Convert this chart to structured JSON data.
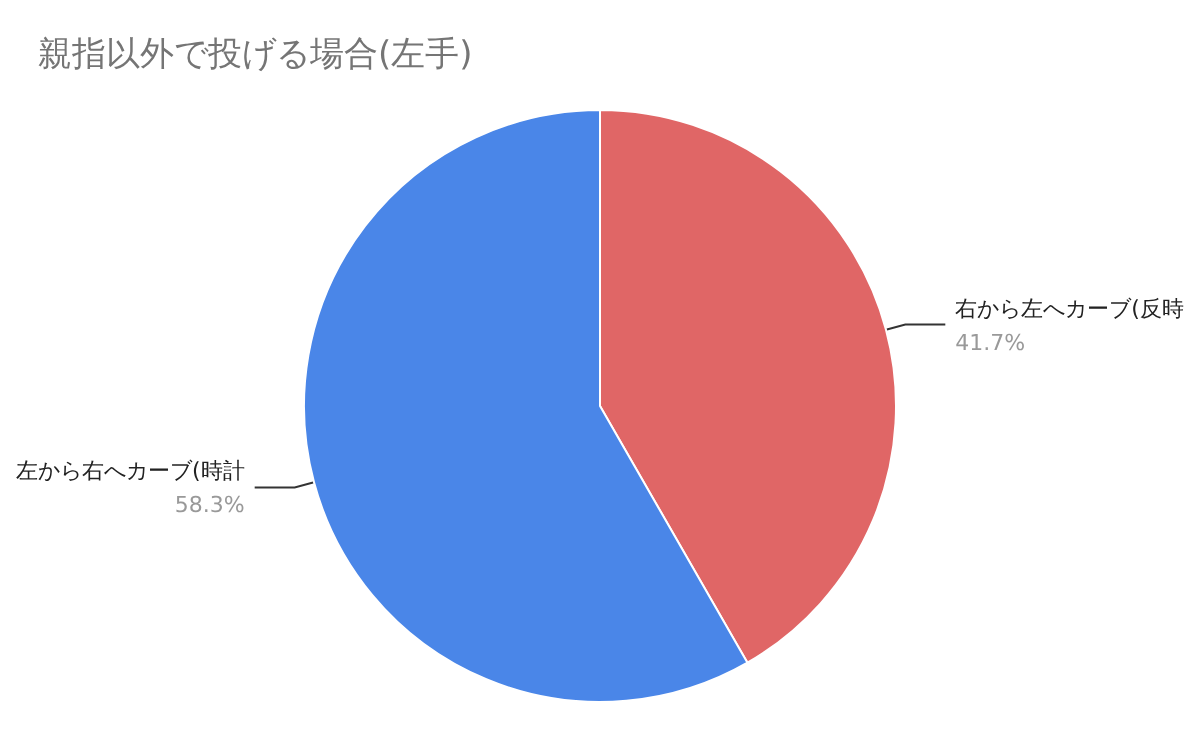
{
  "chart_data": {
    "type": "pie",
    "title": "親指以外で投げる場合(左手)",
    "categories": [
      "右から左へカーブ(反時",
      "左から右へカーブ(時計"
    ],
    "values": [
      41.7,
      58.3
    ],
    "value_labels": [
      "41.7%",
      "58.3%"
    ],
    "colors": [
      "#e06666",
      "#4a86e8"
    ],
    "legend": false
  }
}
